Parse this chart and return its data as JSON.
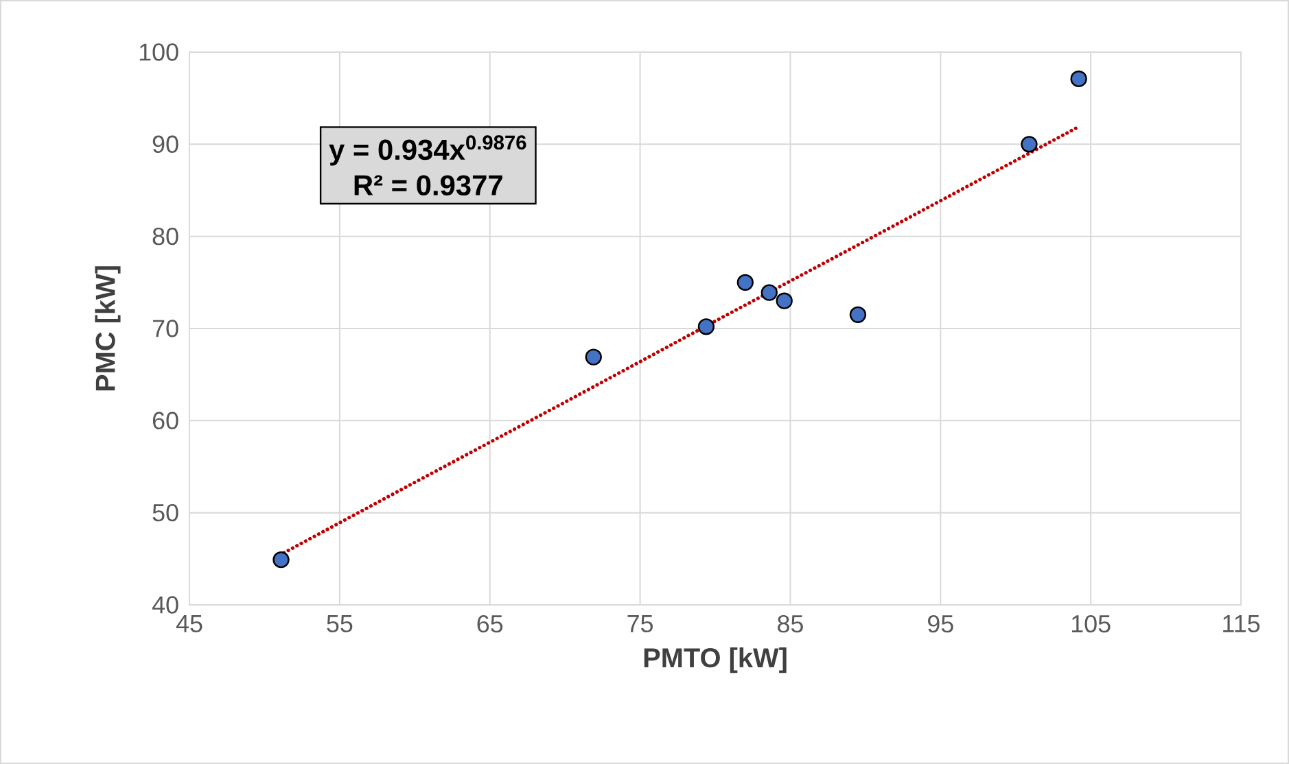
{
  "chart_data": {
    "type": "scatter",
    "xlabel": "PMTO [kW]",
    "ylabel": "PMC [kW]",
    "xlim": [
      45,
      115
    ],
    "xticks": [
      45,
      55,
      65,
      75,
      85,
      95,
      105,
      115
    ],
    "ylim": [
      40,
      100
    ],
    "yticks": [
      40,
      50,
      60,
      70,
      80,
      90,
      100
    ],
    "grid": true,
    "marker": "circle",
    "annotations": [
      "y = 0.934x$^{0.9876}$",
      "R² = 0.9377"
    ],
    "series": [
      {
        "color": "#4472c4",
        "x": [
          51.1,
          71.9,
          79.4,
          82.0,
          83.6,
          84.6,
          89.5,
          100.9,
          104.2
        ],
        "values": [
          44.9,
          66.9,
          70.2,
          75.0,
          73.9,
          73.0,
          71.5,
          90.0,
          97.1
        ]
      },
      {
        "type": "line",
        "color": "#c00000",
        "line_style": "dotted",
        "marker": "none",
        "x": [
          51,
          60,
          70,
          80,
          90,
          104.2
        ],
        "values": [
          45.4,
          53.3,
          62.0,
          70.8,
          79.5,
          91.9
        ]
      }
    ]
  }
}
